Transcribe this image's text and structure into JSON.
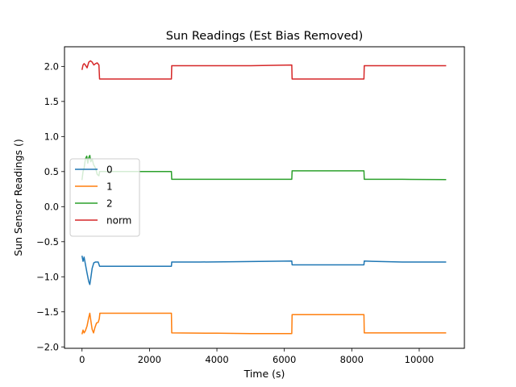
{
  "chart_data": {
    "type": "line",
    "title": "Sun Readings (Est Bias Removed)",
    "xlabel": "Time (s)",
    "ylabel": "Sun Sensor Readings ()",
    "xlim": [
      -520,
      11340
    ],
    "ylim": [
      -2.02,
      2.28
    ],
    "x_ticks": [
      0,
      2000,
      4000,
      6000,
      8000,
      10000
    ],
    "y_ticks": [
      -2.0,
      -1.5,
      -1.0,
      -0.5,
      0.0,
      0.5,
      1.0,
      1.5,
      2.0
    ],
    "x_tick_labels": [
      "0",
      "2000",
      "4000",
      "6000",
      "8000",
      "10000"
    ],
    "y_tick_labels": [
      "−2.0",
      "−1.5",
      "−1.0",
      "−0.5",
      "0.0",
      "0.5",
      "1.0",
      "1.5",
      "2.0"
    ],
    "grid": false,
    "legend_position": "center-left",
    "series": [
      {
        "name": "0",
        "color": "#1f77b4",
        "points": [
          [
            0,
            -0.7
          ],
          [
            30,
            -0.78
          ],
          [
            60,
            -0.72
          ],
          [
            100,
            -0.82
          ],
          [
            150,
            -0.95
          ],
          [
            200,
            -1.07
          ],
          [
            230,
            -1.11
          ],
          [
            260,
            -1.02
          ],
          [
            300,
            -0.88
          ],
          [
            350,
            -0.8
          ],
          [
            400,
            -0.79
          ],
          [
            480,
            -0.79
          ],
          [
            520,
            -0.85
          ],
          [
            1000,
            -0.85
          ],
          [
            1500,
            -0.85
          ],
          [
            2000,
            -0.85
          ],
          [
            2650,
            -0.85
          ],
          [
            2660,
            -0.79
          ],
          [
            3500,
            -0.79
          ],
          [
            4500,
            -0.785
          ],
          [
            5500,
            -0.78
          ],
          [
            6220,
            -0.775
          ],
          [
            6230,
            -0.83
          ],
          [
            7000,
            -0.83
          ],
          [
            8360,
            -0.83
          ],
          [
            8370,
            -0.775
          ],
          [
            8600,
            -0.78
          ],
          [
            9500,
            -0.79
          ],
          [
            10800,
            -0.79
          ]
        ]
      },
      {
        "name": "1",
        "color": "#ff7f0e",
        "points": [
          [
            0,
            -1.82
          ],
          [
            30,
            -1.76
          ],
          [
            60,
            -1.8
          ],
          [
            100,
            -1.77
          ],
          [
            150,
            -1.7
          ],
          [
            200,
            -1.58
          ],
          [
            230,
            -1.52
          ],
          [
            260,
            -1.62
          ],
          [
            300,
            -1.75
          ],
          [
            340,
            -1.8
          ],
          [
            380,
            -1.73
          ],
          [
            430,
            -1.66
          ],
          [
            480,
            -1.65
          ],
          [
            510,
            -1.6
          ],
          [
            530,
            -1.52
          ],
          [
            1000,
            -1.52
          ],
          [
            2000,
            -1.52
          ],
          [
            2650,
            -1.52
          ],
          [
            2660,
            -1.8
          ],
          [
            4000,
            -1.805
          ],
          [
            5000,
            -1.81
          ],
          [
            6220,
            -1.81
          ],
          [
            6230,
            -1.54
          ],
          [
            7000,
            -1.54
          ],
          [
            8360,
            -1.54
          ],
          [
            8370,
            -1.8
          ],
          [
            9500,
            -1.8
          ],
          [
            10800,
            -1.8
          ]
        ]
      },
      {
        "name": "2",
        "color": "#2ca02c",
        "points": [
          [
            0,
            0.38
          ],
          [
            30,
            0.5
          ],
          [
            60,
            0.55
          ],
          [
            100,
            0.68
          ],
          [
            140,
            0.72
          ],
          [
            170,
            0.62
          ],
          [
            200,
            0.7
          ],
          [
            230,
            0.73
          ],
          [
            260,
            0.64
          ],
          [
            300,
            0.68
          ],
          [
            340,
            0.6
          ],
          [
            400,
            0.55
          ],
          [
            450,
            0.46
          ],
          [
            500,
            0.44
          ],
          [
            520,
            0.5
          ],
          [
            1000,
            0.5
          ],
          [
            2000,
            0.5
          ],
          [
            2650,
            0.5
          ],
          [
            2660,
            0.39
          ],
          [
            4000,
            0.39
          ],
          [
            5000,
            0.39
          ],
          [
            6220,
            0.39
          ],
          [
            6230,
            0.51
          ],
          [
            7000,
            0.51
          ],
          [
            8360,
            0.51
          ],
          [
            8370,
            0.39
          ],
          [
            9500,
            0.39
          ],
          [
            10800,
            0.385
          ]
        ]
      },
      {
        "name": "norm",
        "color": "#d62728",
        "points": [
          [
            0,
            1.95
          ],
          [
            30,
            2.02
          ],
          [
            60,
            2.04
          ],
          [
            100,
            2.02
          ],
          [
            150,
            1.98
          ],
          [
            200,
            2.06
          ],
          [
            250,
            2.08
          ],
          [
            300,
            2.06
          ],
          [
            350,
            2.02
          ],
          [
            400,
            2.04
          ],
          [
            450,
            2.05
          ],
          [
            500,
            2.02
          ],
          [
            520,
            1.82
          ],
          [
            1000,
            1.82
          ],
          [
            2000,
            1.82
          ],
          [
            2650,
            1.82
          ],
          [
            2660,
            2.01
          ],
          [
            4000,
            2.01
          ],
          [
            5000,
            2.01
          ],
          [
            6220,
            2.02
          ],
          [
            6230,
            1.82
          ],
          [
            7000,
            1.82
          ],
          [
            8360,
            1.82
          ],
          [
            8370,
            2.01
          ],
          [
            9500,
            2.01
          ],
          [
            10800,
            2.01
          ]
        ]
      }
    ]
  }
}
